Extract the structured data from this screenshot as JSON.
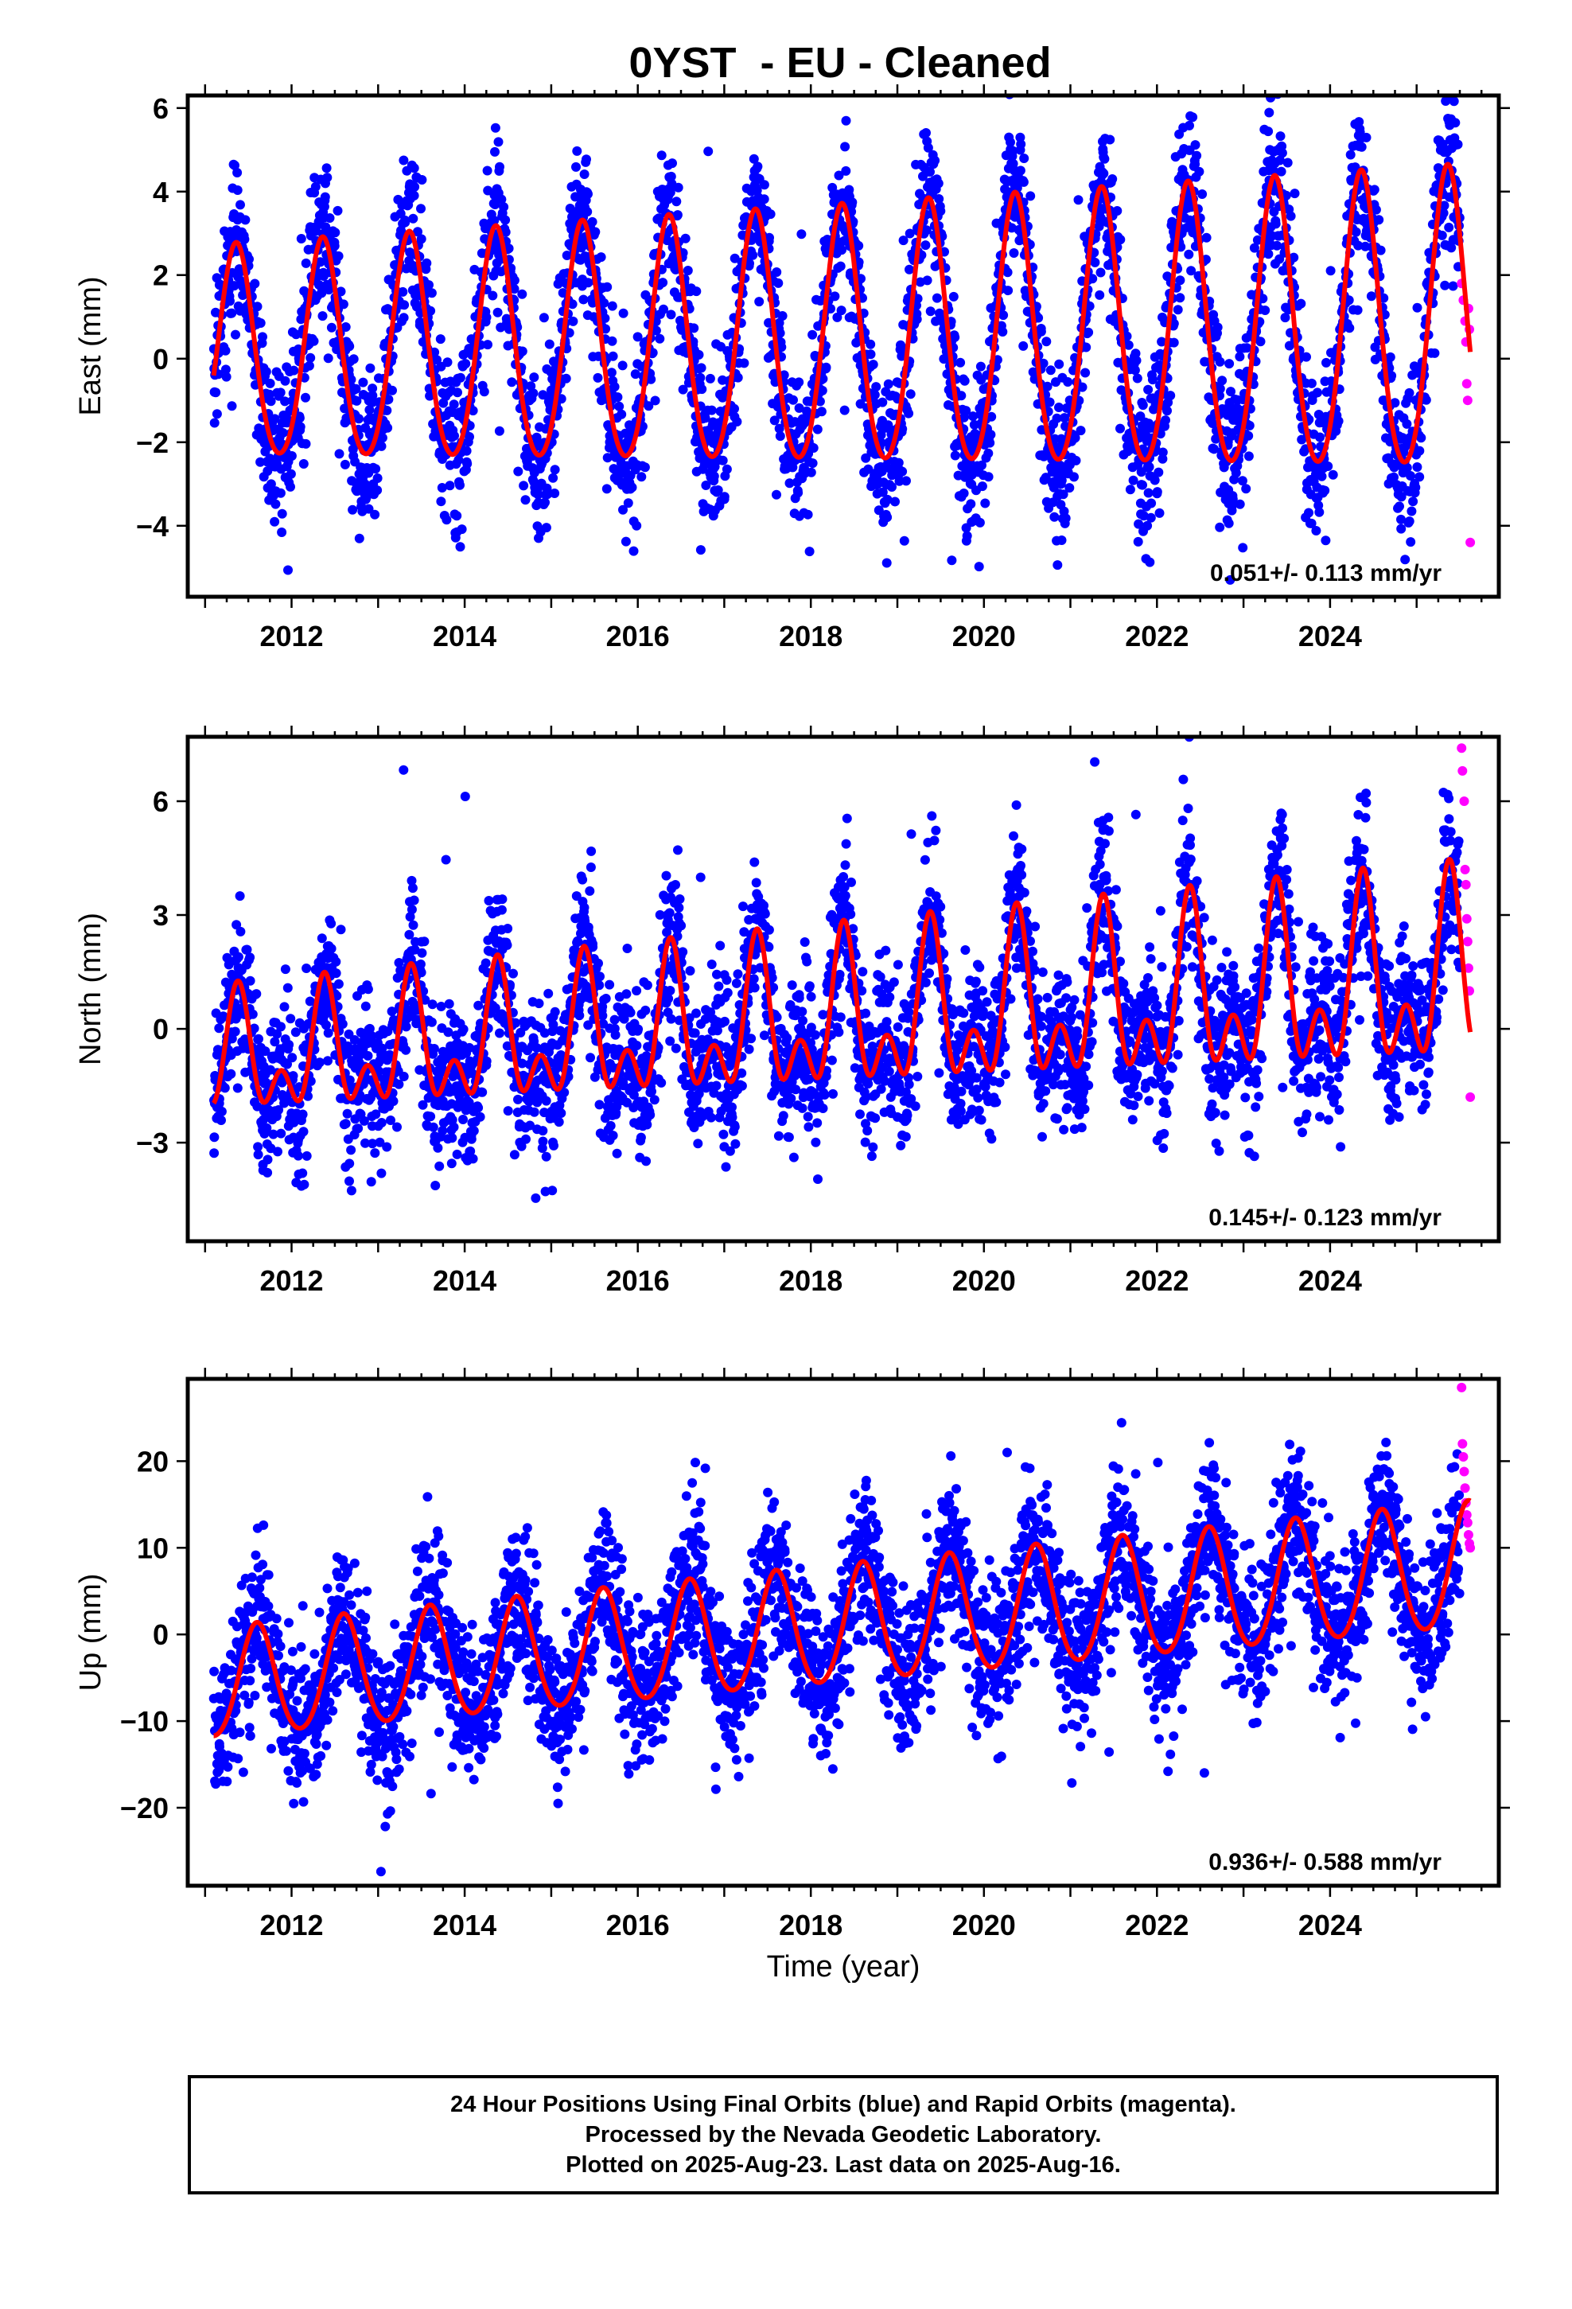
{
  "page_title": "0YST  - EU - Cleaned",
  "colors": {
    "final_orbits": "#0000ff",
    "rapid_orbits": "#ff00ff",
    "model": "#ff0000",
    "frame": "#000000"
  },
  "x_axis_label": "Time (year)",
  "footer": {
    "line1": "24 Hour Positions Using Final Orbits (blue) and Rapid Orbits (magenta).",
    "line2": "Processed by the Nevada Geodetic Laboratory.",
    "line3": "Plotted on 2025-Aug-23. Last data on 2025-Aug-16."
  },
  "chart_data": [
    {
      "type": "scatter",
      "component": "east",
      "ylabel": "East (mm)",
      "xlim": [
        2010.8,
        2025.95
      ],
      "ylim": [
        -5.7,
        6.3
      ],
      "xticks": [
        2012,
        2014,
        2016,
        2018,
        2020,
        2022,
        2024
      ],
      "yticks": [
        -4,
        -2,
        0,
        2,
        4,
        6
      ],
      "velocity_label": "0.051+/- 0.113 mm/yr",
      "model": {
        "t0": 2011.1,
        "offset": 0.0,
        "trend_mm_per_yr": 0.051,
        "annual_amp": 2.5,
        "annual_peak_phase": 0.36,
        "semiannual_amp": 0.25,
        "semiannual_peak_phase": 0.36,
        "amp_growth_per_yr": 0.03
      },
      "scatter": {
        "sigma": 0.95,
        "epochs_per_year": 300,
        "outlier_rate": 0.015,
        "outlier_spread": 3.0
      },
      "series": [
        {
          "name": "Final Orbits (blue)",
          "x_range": [
            2011.1,
            2025.5
          ]
        },
        {
          "name": "Rapid Orbits (magenta)",
          "x_range": [
            2025.5,
            2025.62
          ]
        }
      ],
      "rapid_points": [
        {
          "x": 2025.52,
          "y": 1.8
        },
        {
          "x": 2025.54,
          "y": 1.4
        },
        {
          "x": 2025.56,
          "y": 0.9
        },
        {
          "x": 2025.57,
          "y": 0.4
        },
        {
          "x": 2025.58,
          "y": -0.6
        },
        {
          "x": 2025.59,
          "y": -1.0
        },
        {
          "x": 2025.6,
          "y": 1.2
        },
        {
          "x": 2025.61,
          "y": 0.7
        },
        {
          "x": 2025.62,
          "y": -4.4
        }
      ]
    },
    {
      "type": "scatter",
      "component": "north",
      "ylabel": "North (mm)",
      "xlim": [
        2010.8,
        2025.95
      ],
      "ylim": [
        -5.6,
        7.7
      ],
      "xticks": [
        2012,
        2014,
        2016,
        2018,
        2020,
        2022,
        2024
      ],
      "yticks": [
        -3,
        0,
        3,
        6
      ],
      "velocity_label": "0.145+/- 0.123 mm/yr",
      "model": {
        "t0": 2011.1,
        "offset": -0.9,
        "trend_mm_per_yr": 0.145,
        "annual_amp": 1.2,
        "annual_peak_phase": 0.38,
        "semiannual_amp": 0.9,
        "semiannual_peak_phase": 0.38,
        "amp_growth_per_yr": 0.04
      },
      "scatter": {
        "sigma": 1.0,
        "epochs_per_year": 300,
        "outlier_rate": 0.015,
        "outlier_spread": 3.0
      },
      "series": [
        {
          "name": "Final Orbits (blue)",
          "x_range": [
            2011.1,
            2025.5
          ]
        },
        {
          "name": "Rapid Orbits (magenta)",
          "x_range": [
            2025.5,
            2025.62
          ]
        }
      ],
      "rapid_points": [
        {
          "x": 2025.52,
          "y": 7.4
        },
        {
          "x": 2025.53,
          "y": 6.8
        },
        {
          "x": 2025.55,
          "y": 6.0
        },
        {
          "x": 2025.56,
          "y": 4.2
        },
        {
          "x": 2025.57,
          "y": 3.8
        },
        {
          "x": 2025.58,
          "y": 2.9
        },
        {
          "x": 2025.59,
          "y": 2.3
        },
        {
          "x": 2025.6,
          "y": 1.6
        },
        {
          "x": 2025.61,
          "y": 1.0
        },
        {
          "x": 2025.62,
          "y": -1.8
        }
      ]
    },
    {
      "type": "scatter",
      "component": "up",
      "ylabel": "Up (mm)",
      "xlim": [
        2010.8,
        2025.95
      ],
      "ylim": [
        -29.0,
        29.5
      ],
      "xticks": [
        2012,
        2014,
        2016,
        2018,
        2020,
        2022,
        2024
      ],
      "yticks": [
        -20,
        -10,
        0,
        10,
        20
      ],
      "velocity_label": "0.936+/- 0.588 mm/yr",
      "model": {
        "t0": 2011.1,
        "offset": -6.0,
        "trend_mm_per_yr": 0.936,
        "annual_amp": 6.3,
        "annual_peak_phase": 0.6,
        "semiannual_amp": 0.6,
        "semiannual_peak_phase": 0.6,
        "amp_growth_per_yr": 0.01
      },
      "scatter": {
        "sigma": 4.3,
        "epochs_per_year": 300,
        "outlier_rate": 0.012,
        "outlier_spread": 3.0
      },
      "series": [
        {
          "name": "Final Orbits (blue)",
          "x_range": [
            2011.1,
            2025.5
          ]
        },
        {
          "name": "Rapid Orbits (magenta)",
          "x_range": [
            2025.5,
            2025.62
          ]
        }
      ],
      "rapid_points": [
        {
          "x": 2025.52,
          "y": 28.5
        },
        {
          "x": 2025.53,
          "y": 22.0
        },
        {
          "x": 2025.54,
          "y": 20.5
        },
        {
          "x": 2025.55,
          "y": 18.8
        },
        {
          "x": 2025.56,
          "y": 16.9
        },
        {
          "x": 2025.57,
          "y": 15.2
        },
        {
          "x": 2025.58,
          "y": 13.8
        },
        {
          "x": 2025.59,
          "y": 12.9
        },
        {
          "x": 2025.6,
          "y": 11.5
        },
        {
          "x": 2025.61,
          "y": 10.5
        },
        {
          "x": 2025.62,
          "y": 10.0
        }
      ]
    }
  ]
}
